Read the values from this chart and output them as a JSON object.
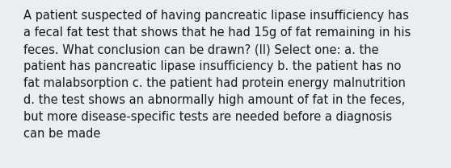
{
  "background_color": "#e8eef2",
  "text_color": "#1a1a1a",
  "lines": [
    "A patient suspected of having pancreatic lipase insufficiency has",
    "a fecal fat test that shows that he had 15g of fat remaining in his",
    "feces. What conclusion can be drawn? (II) Select one: a. the",
    "patient has pancreatic lipase insufficiency b. the patient has no",
    "fat malabsorption c. the patient had protein energy malnutrition",
    "d. the test shows an abnormally high amount of fat in the feces,",
    "but more disease-specific tests are needed before a diagnosis",
    "can be made"
  ],
  "font_size": 10.5,
  "font_family": "DejaVu Sans",
  "fig_width": 5.58,
  "fig_height": 2.09,
  "dpi": 100
}
